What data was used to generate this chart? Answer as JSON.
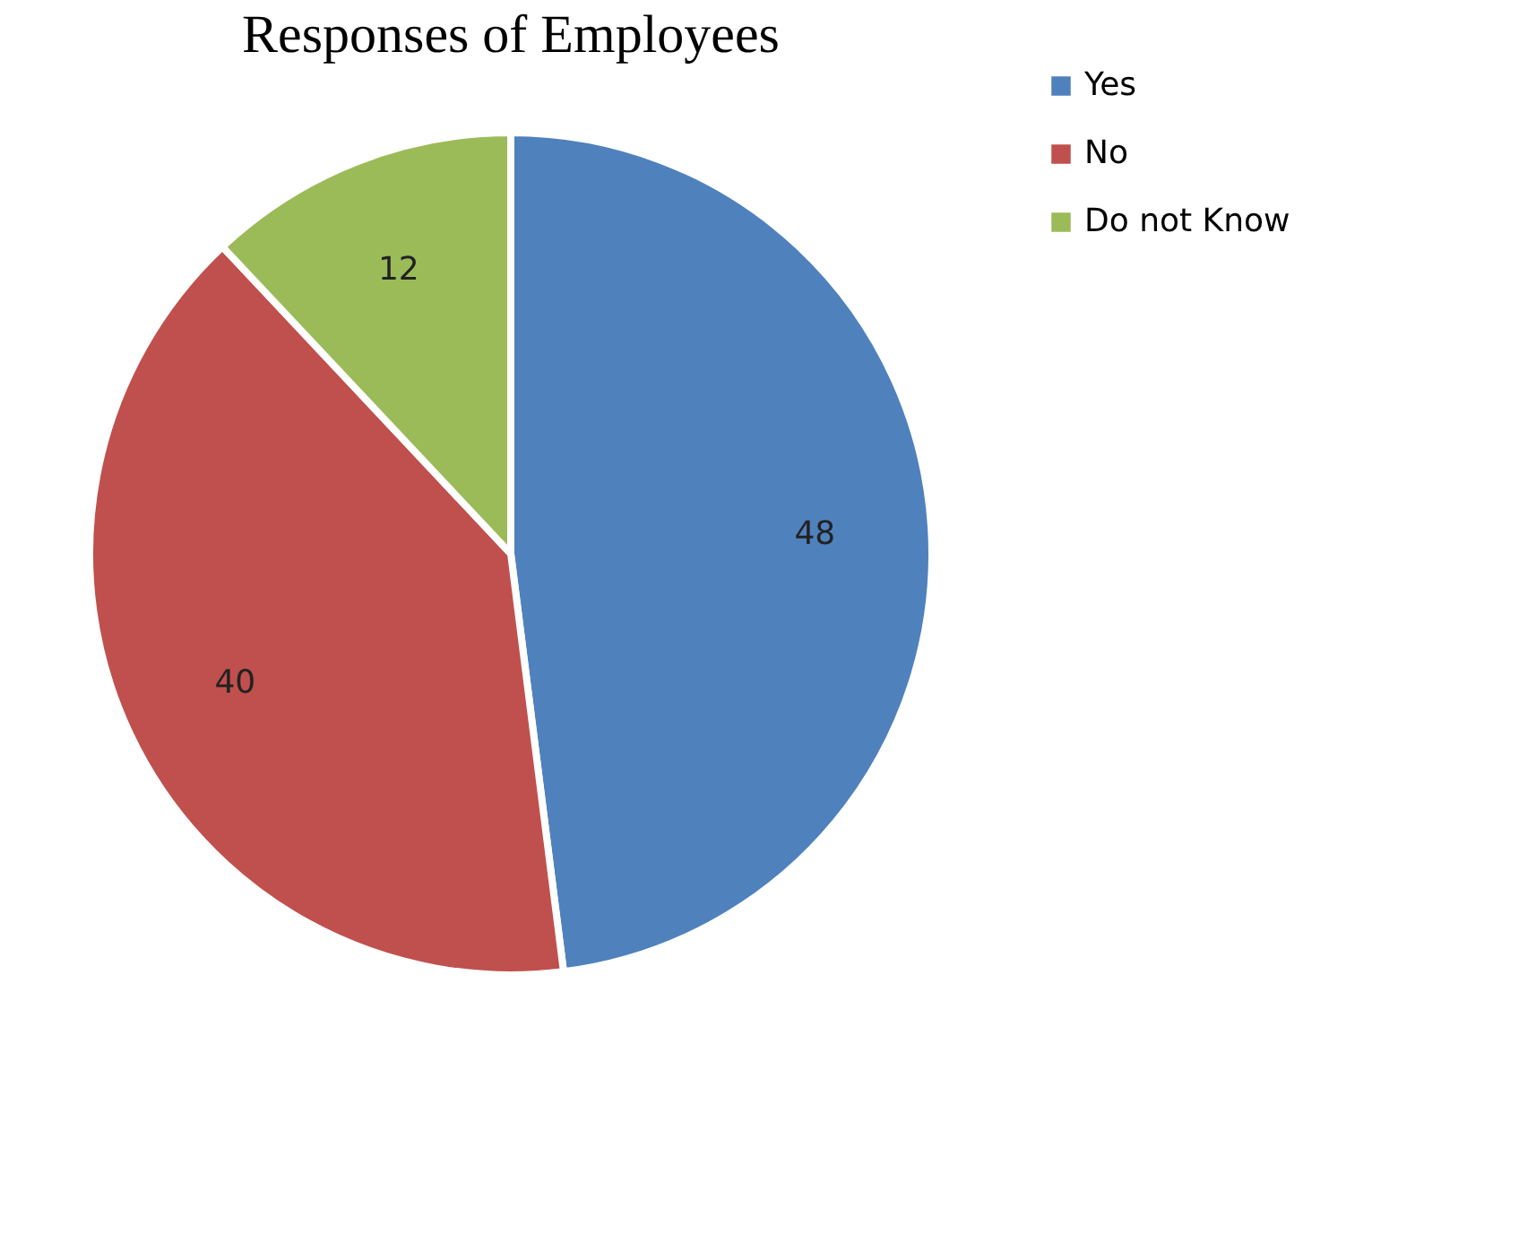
{
  "chart_data": {
    "type": "pie",
    "title": "Responses of Employees",
    "categories": [
      "Yes",
      "No",
      "Do not Know"
    ],
    "values": [
      48,
      40,
      12
    ],
    "colors": [
      "#4f81bd",
      "#c0504d",
      "#9bbb59"
    ],
    "data_labels": true,
    "legend": "right"
  }
}
